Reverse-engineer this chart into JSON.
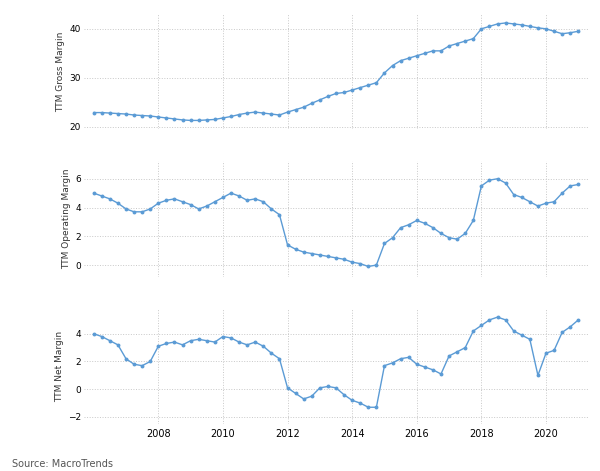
{
  "source": "Source: MacroTrends",
  "background_color": "#ffffff",
  "line_color": "#5b9bd5",
  "marker_color": "#5b9bd5",
  "grid_color": "#c8c8c8",
  "years": [
    2006.0,
    2006.25,
    2006.5,
    2006.75,
    2007.0,
    2007.25,
    2007.5,
    2007.75,
    2008.0,
    2008.25,
    2008.5,
    2008.75,
    2009.0,
    2009.25,
    2009.5,
    2009.75,
    2010.0,
    2010.25,
    2010.5,
    2010.75,
    2011.0,
    2011.25,
    2011.5,
    2011.75,
    2012.0,
    2012.25,
    2012.5,
    2012.75,
    2013.0,
    2013.25,
    2013.5,
    2013.75,
    2014.0,
    2014.25,
    2014.5,
    2014.75,
    2015.0,
    2015.25,
    2015.5,
    2015.75,
    2016.0,
    2016.25,
    2016.5,
    2016.75,
    2017.0,
    2017.25,
    2017.5,
    2017.75,
    2018.0,
    2018.25,
    2018.5,
    2018.75,
    2019.0,
    2019.25,
    2019.5,
    2019.75,
    2020.0,
    2020.25,
    2020.5,
    2020.75,
    2021.0
  ],
  "gross_margin": [
    22.9,
    22.9,
    22.8,
    22.7,
    22.6,
    22.4,
    22.3,
    22.2,
    22.0,
    21.8,
    21.6,
    21.4,
    21.3,
    21.3,
    21.4,
    21.5,
    21.8,
    22.1,
    22.5,
    22.8,
    23.0,
    22.8,
    22.6,
    22.4,
    23.0,
    23.5,
    24.0,
    24.8,
    25.5,
    26.2,
    26.8,
    27.0,
    27.5,
    28.0,
    28.5,
    29.0,
    31.0,
    32.5,
    33.5,
    34.0,
    34.5,
    35.0,
    35.5,
    35.5,
    36.5,
    37.0,
    37.5,
    38.0,
    40.0,
    40.5,
    41.0,
    41.2,
    41.0,
    40.8,
    40.5,
    40.2,
    40.0,
    39.5,
    39.0,
    39.2,
    39.5
  ],
  "operating_margin": [
    5.0,
    4.8,
    4.6,
    4.3,
    3.9,
    3.7,
    3.7,
    3.9,
    4.3,
    4.5,
    4.6,
    4.4,
    4.2,
    3.9,
    4.1,
    4.4,
    4.7,
    5.0,
    4.8,
    4.5,
    4.6,
    4.4,
    3.9,
    3.5,
    1.4,
    1.1,
    0.9,
    0.8,
    0.7,
    0.6,
    0.5,
    0.4,
    0.2,
    0.1,
    -0.1,
    0.0,
    1.5,
    1.9,
    2.6,
    2.8,
    3.1,
    2.9,
    2.6,
    2.2,
    1.9,
    1.8,
    2.2,
    3.1,
    5.5,
    5.9,
    6.0,
    5.7,
    4.9,
    4.7,
    4.4,
    4.1,
    4.3,
    4.4,
    5.0,
    5.5,
    5.6
  ],
  "net_margin": [
    4.0,
    3.8,
    3.5,
    3.2,
    2.2,
    1.8,
    1.7,
    2.0,
    3.1,
    3.3,
    3.4,
    3.2,
    3.5,
    3.6,
    3.5,
    3.4,
    3.8,
    3.7,
    3.4,
    3.2,
    3.4,
    3.1,
    2.6,
    2.2,
    0.1,
    -0.3,
    -0.7,
    -0.5,
    0.1,
    0.2,
    0.1,
    -0.4,
    -0.8,
    -1.0,
    -1.3,
    -1.3,
    1.7,
    1.9,
    2.2,
    2.3,
    1.8,
    1.6,
    1.4,
    1.1,
    2.4,
    2.7,
    3.0,
    4.2,
    4.6,
    5.0,
    5.2,
    5.0,
    4.2,
    3.9,
    3.6,
    1.0,
    2.6,
    2.8,
    4.1,
    4.5,
    5.0
  ],
  "ylim_gross": [
    19.5,
    43
  ],
  "yticks_gross": [
    20,
    30,
    40
  ],
  "ylim_op": [
    -0.8,
    7.2
  ],
  "yticks_op": [
    0,
    2,
    4,
    6
  ],
  "ylim_net": [
    -2.5,
    5.8
  ],
  "yticks_net": [
    -2,
    0,
    2,
    4
  ],
  "ylabel1": "TTM Gross Margin",
  "ylabel2": "TTM Operating Margin",
  "ylabel3": "TTM Net Margin",
  "xtick_years": [
    2008,
    2010,
    2012,
    2014,
    2016,
    2018,
    2020
  ]
}
